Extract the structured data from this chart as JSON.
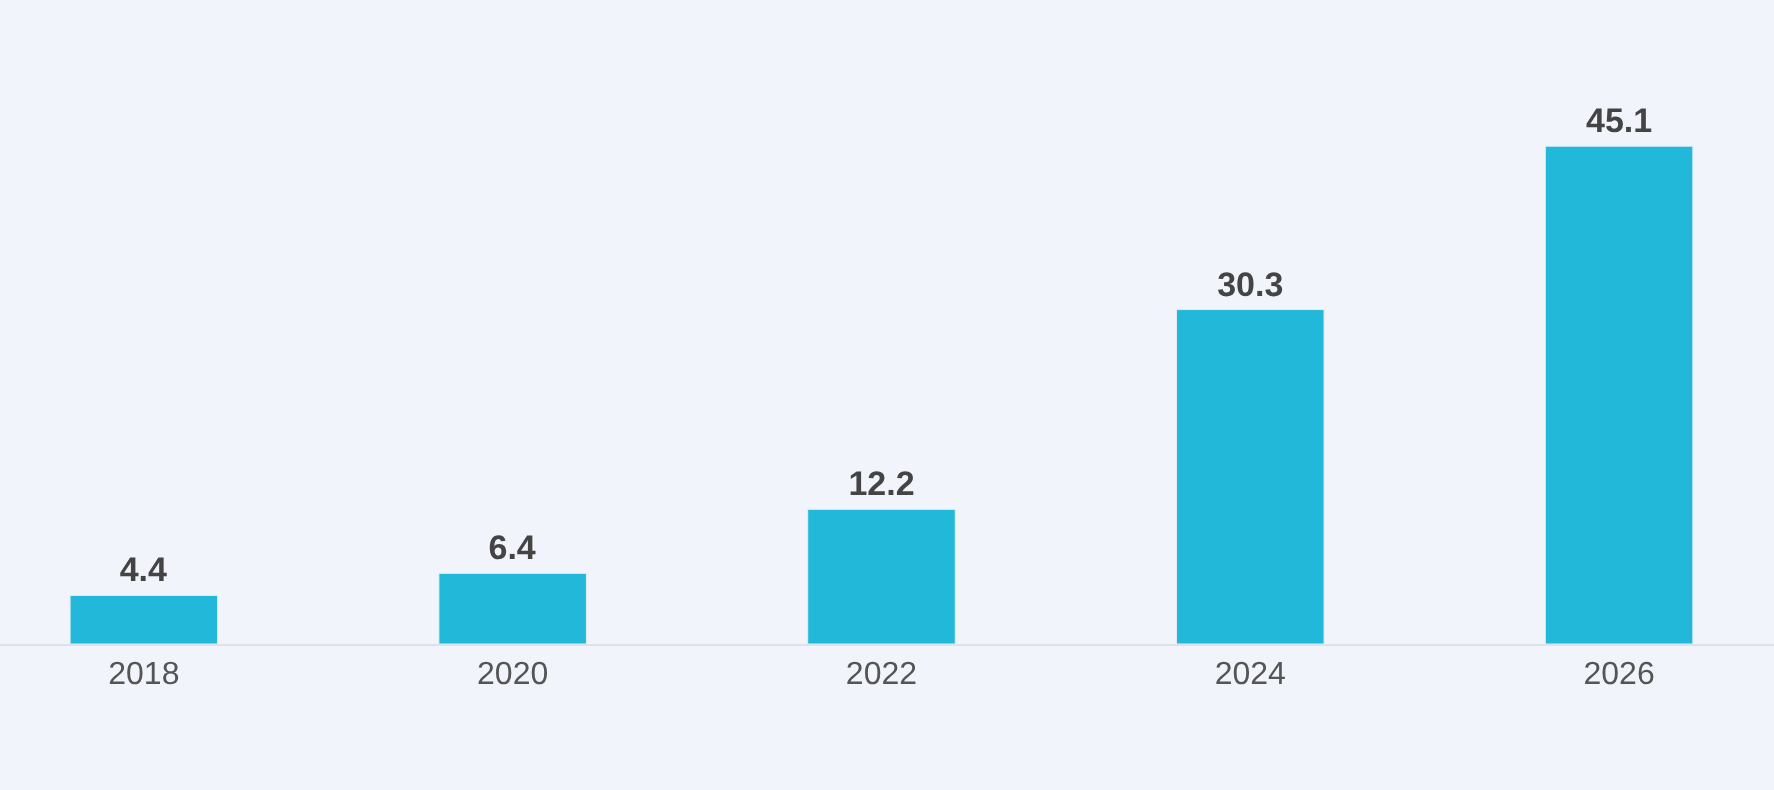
{
  "chart_data": {
    "type": "bar",
    "categories": [
      "2018",
      "2020",
      "2022",
      "2024",
      "2026"
    ],
    "values": [
      4.4,
      6.4,
      12.2,
      30.3,
      45.1
    ],
    "color": "#22b8d9",
    "data_labels": true,
    "grid": false,
    "legend": false
  }
}
